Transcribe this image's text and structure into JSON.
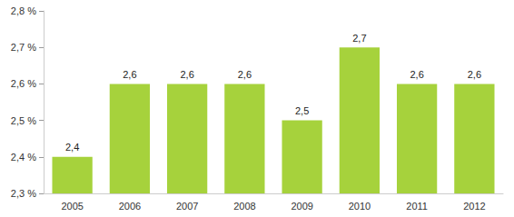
{
  "chart_data": {
    "type": "bar",
    "categories": [
      "2005",
      "2006",
      "2007",
      "2008",
      "2009",
      "2010",
      "2011",
      "2012"
    ],
    "values": [
      2.4,
      2.6,
      2.6,
      2.6,
      2.5,
      2.7,
      2.6,
      2.6
    ],
    "value_labels": [
      "2,4",
      "2,6",
      "2,6",
      "2,6",
      "2,5",
      "2,7",
      "2,6",
      "2,6"
    ],
    "color": "#a6d23c",
    "ylim": [
      2.3,
      2.8
    ],
    "yticks": [
      {
        "value": 2.3,
        "label": "2,3 %"
      },
      {
        "value": 2.4,
        "label": "2,4 %"
      },
      {
        "value": 2.5,
        "label": "2,5 %"
      },
      {
        "value": 2.6,
        "label": "2,6 %"
      },
      {
        "value": 2.7,
        "label": "2,7 %"
      },
      {
        "value": 2.8,
        "label": "2,8 %"
      }
    ],
    "grid": false,
    "data_labels": true
  }
}
